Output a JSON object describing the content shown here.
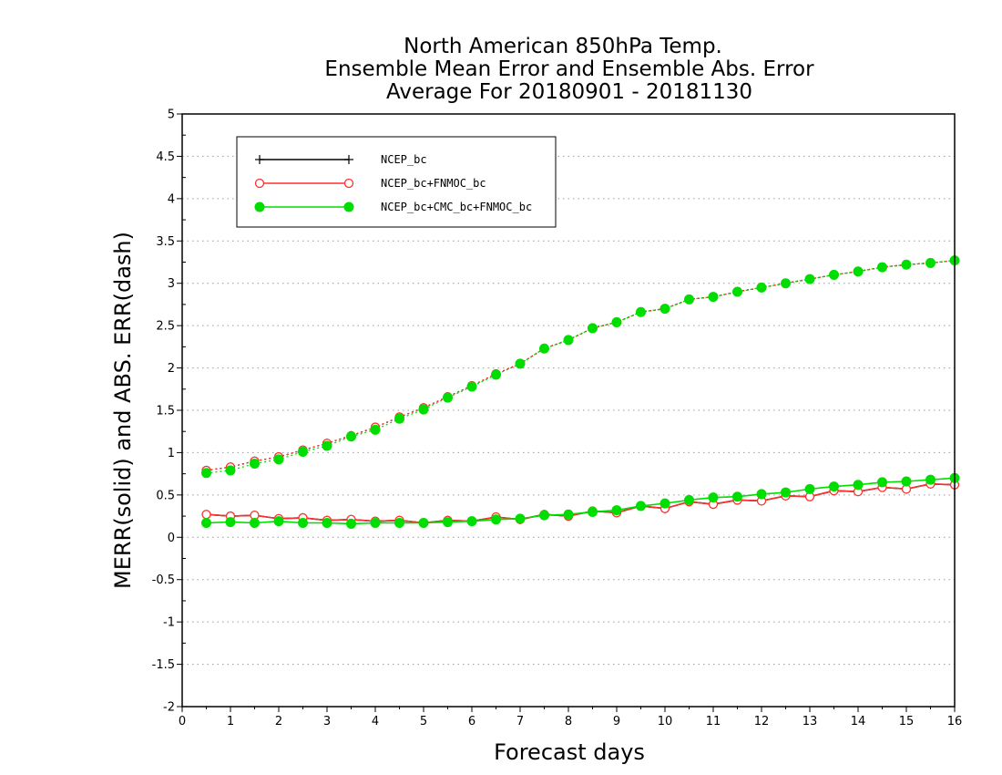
{
  "chart_data": {
    "type": "line",
    "title_lines": [
      "North American 850hPa Temp.",
      "Ensemble Mean Error and Ensemble Abs. Error",
      "Average For 20180901 - 20181130"
    ],
    "xlabel": "Forecast days",
    "ylabel": "MERR(solid) and ABS. ERR(dash)",
    "xlim": [
      0,
      16
    ],
    "ylim": [
      -2,
      5
    ],
    "x_ticks": [
      "0",
      "1",
      "2",
      "3",
      "4",
      "5",
      "6",
      "7",
      "8",
      "9",
      "10",
      "11",
      "12",
      "13",
      "14",
      "15",
      "16"
    ],
    "y_ticks": [
      "-2",
      "-1.5",
      "-1",
      "-0.5",
      "0",
      "0.5",
      "1",
      "1.5",
      "2",
      "2.5",
      "3",
      "3.5",
      "4",
      "4.5",
      "5"
    ],
    "grid": "horizontal dotted",
    "legend_position": "top-left",
    "x": [
      0.5,
      1,
      1.5,
      2,
      2.5,
      3,
      3.5,
      4,
      4.5,
      5,
      5.5,
      6,
      6.5,
      7,
      7.5,
      8,
      8.5,
      9,
      9.5,
      10,
      10.5,
      11,
      11.5,
      12,
      12.5,
      13,
      13.5,
      14,
      14.5,
      15,
      15.5,
      16
    ],
    "series": [
      {
        "name": "NCEP_bc",
        "color": "#000000",
        "marker": "plus",
        "merr": [
          0.27,
          0.25,
          0.26,
          0.22,
          0.23,
          0.2,
          0.21,
          0.19,
          0.2,
          0.17,
          0.2,
          0.19,
          0.24,
          0.21,
          0.27,
          0.25,
          0.31,
          0.29,
          0.37,
          0.34,
          0.42,
          0.39,
          0.44,
          0.43,
          0.49,
          0.48,
          0.55,
          0.54,
          0.59,
          0.57,
          0.63,
          0.62
        ],
        "abs_err": [
          0.79,
          0.83,
          0.9,
          0.95,
          1.03,
          1.11,
          1.2,
          1.3,
          1.42,
          1.53,
          1.66,
          1.79,
          1.93,
          2.05,
          2.23,
          2.33,
          2.47,
          2.54,
          2.66,
          2.7,
          2.81,
          2.84,
          2.9,
          2.95,
          3.0,
          3.05,
          3.1,
          3.14,
          3.19,
          3.22,
          3.24,
          3.27
        ]
      },
      {
        "name": "NCEP_bc+FNMOC_bc",
        "color": "#ff3030",
        "marker": "open-circle",
        "merr": [
          0.27,
          0.25,
          0.26,
          0.22,
          0.23,
          0.2,
          0.21,
          0.19,
          0.2,
          0.17,
          0.2,
          0.19,
          0.24,
          0.21,
          0.27,
          0.25,
          0.31,
          0.29,
          0.37,
          0.34,
          0.42,
          0.39,
          0.44,
          0.43,
          0.49,
          0.48,
          0.55,
          0.54,
          0.59,
          0.57,
          0.63,
          0.62
        ],
        "abs_err": [
          0.79,
          0.83,
          0.9,
          0.95,
          1.03,
          1.11,
          1.2,
          1.3,
          1.42,
          1.53,
          1.66,
          1.79,
          1.93,
          2.05,
          2.23,
          2.33,
          2.47,
          2.54,
          2.66,
          2.7,
          2.81,
          2.84,
          2.9,
          2.95,
          3.0,
          3.05,
          3.1,
          3.14,
          3.19,
          3.22,
          3.24,
          3.27
        ]
      },
      {
        "name": "NCEP_bc+CMC_bc+FNMOC_bc",
        "color": "#00dd00",
        "marker": "filled-circle",
        "merr": [
          0.17,
          0.18,
          0.17,
          0.19,
          0.17,
          0.17,
          0.16,
          0.17,
          0.17,
          0.17,
          0.18,
          0.19,
          0.21,
          0.22,
          0.26,
          0.27,
          0.3,
          0.32,
          0.37,
          0.4,
          0.44,
          0.47,
          0.48,
          0.51,
          0.53,
          0.57,
          0.6,
          0.62,
          0.65,
          0.66,
          0.68,
          0.7
        ],
        "abs_err": [
          0.76,
          0.79,
          0.87,
          0.92,
          1.01,
          1.08,
          1.19,
          1.27,
          1.4,
          1.51,
          1.65,
          1.78,
          1.92,
          2.05,
          2.23,
          2.33,
          2.47,
          2.54,
          2.66,
          2.7,
          2.81,
          2.84,
          2.9,
          2.95,
          3.0,
          3.05,
          3.1,
          3.14,
          3.19,
          3.22,
          3.24,
          3.27
        ]
      }
    ]
  }
}
